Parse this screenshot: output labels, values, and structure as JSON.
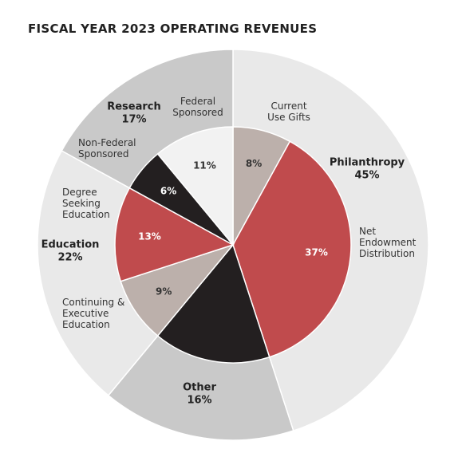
{
  "chart_data": {
    "type": "sunburst",
    "title": "FISCAL YEAR 2023 OPERATING REVENUES",
    "outer": {
      "categories": [
        "Philanthropy",
        "Other",
        "Education",
        "Research"
      ],
      "values": [
        45,
        16,
        22,
        17
      ],
      "value_labels": [
        "45%",
        "16%",
        "22%",
        "17%"
      ],
      "colors": [
        "#e9e9e9",
        "#c9c9c9",
        "#e9e9e9",
        "#c9c9c9"
      ]
    },
    "inner": {
      "categories": [
        "Current\nUse Gifts",
        "Net\nEndowment\nDistribution",
        null,
        "Continuing &\nExecutive\nEducation",
        "Degree\nSeeking\nEducation",
        "Non-Federal\nSponsored",
        "Federal\nSponsored"
      ],
      "values": [
        8,
        37,
        16,
        9,
        13,
        6,
        11
      ],
      "value_labels": [
        "8%",
        "37%",
        null,
        "9%",
        "13%",
        "6%",
        "11%"
      ],
      "colors": [
        "#bcb0ab",
        "#c04b4d",
        "#231f20",
        "#bcb0ab",
        "#c04b4d",
        "#231f20",
        "#f2f2f2"
      ]
    }
  }
}
